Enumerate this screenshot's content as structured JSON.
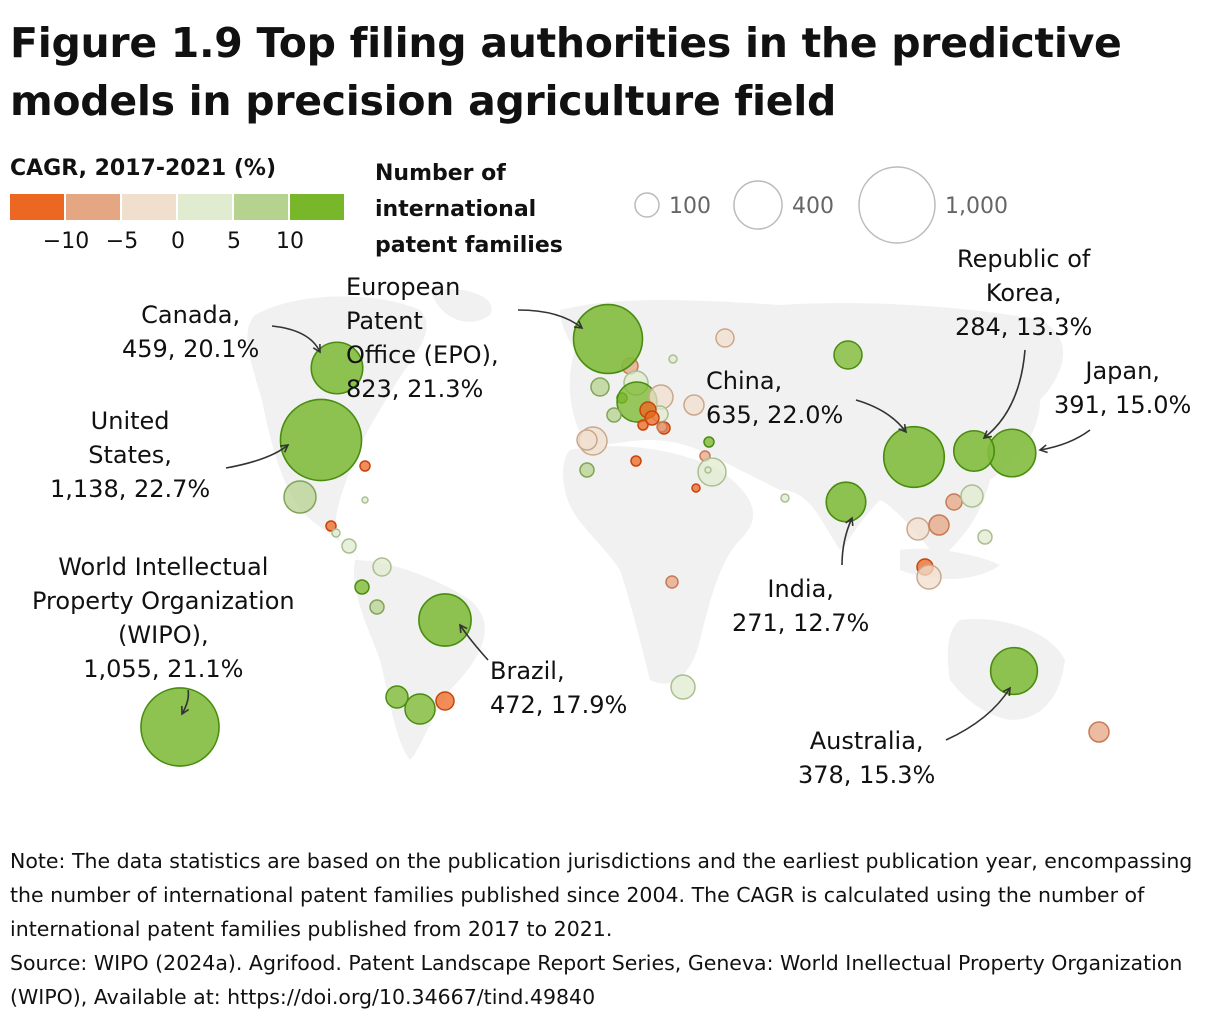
{
  "title": "Figure 1.9 Top filing authorities in the predictive models in precision agriculture field",
  "legend": {
    "color_title": "CAGR, 2017-2021 (%)",
    "color_bins": [
      "#ec6722",
      "#e5a683",
      "#f0dfcd",
      "#e0ebd0",
      "#b6d28f",
      "#78b72a"
    ],
    "color_ticks": [
      "−10",
      "−5",
      "0",
      "5",
      "10"
    ],
    "size_title": "Number of international patent families",
    "size_values": [
      "100",
      "400",
      "1,000"
    ]
  },
  "chart_data": {
    "type": "bubble-map",
    "title": "Figure 1.9 Top filing authorities in the predictive models in precision agriculture field",
    "size_measure": "Number of international patent families",
    "color_measure": "CAGR, 2017-2021 (%)",
    "points": [
      {
        "name": "United States",
        "value": 1138,
        "cagr": 22.7,
        "label": "United\nStates,\n1,138, 22.7%"
      },
      {
        "name": "WIPO",
        "value": 1055,
        "cagr": 21.1,
        "label": "World Intellectual\nProperty Organization\n(WIPO),\n1,055, 21.1%"
      },
      {
        "name": "European Patent Office (EPO)",
        "value": 823,
        "cagr": 21.3,
        "label": "European\nPatent\nOffice (EPO),\n823, 21.3%"
      },
      {
        "name": "China",
        "value": 635,
        "cagr": 22.0,
        "label": "China,\n635, 22.0%"
      },
      {
        "name": "Brazil",
        "value": 472,
        "cagr": 17.9,
        "label": "Brazil,\n472, 17.9%"
      },
      {
        "name": "Canada",
        "value": 459,
        "cagr": 20.1,
        "label": "Canada,\n459, 20.1%"
      },
      {
        "name": "Japan",
        "value": 391,
        "cagr": 15.0,
        "label": "Japan,\n391, 15.0%"
      },
      {
        "name": "Australia",
        "value": 378,
        "cagr": 15.3,
        "label": "Australia,\n378, 15.3%"
      },
      {
        "name": "Republic of Korea",
        "value": 284,
        "cagr": 13.3,
        "label": "Republic of\nKorea,\n284, 13.3%"
      },
      {
        "name": "India",
        "value": 271,
        "cagr": 12.7,
        "label": "India,\n271, 12.7%"
      }
    ]
  },
  "note": "Note: The data statistics are based on the publication jurisdictions and the earliest publication year, encompassing the number of international patent families published since 2004. The CAGR is calculated using the number of international patent families published from 2017 to 2021.",
  "source": "Source: WIPO (2024a). Agrifood. Patent Landscape Report Series, Geneva: World Inellectual Property Organization (WIPO), Available at: https://doi.org/10.34667/tind.49840"
}
